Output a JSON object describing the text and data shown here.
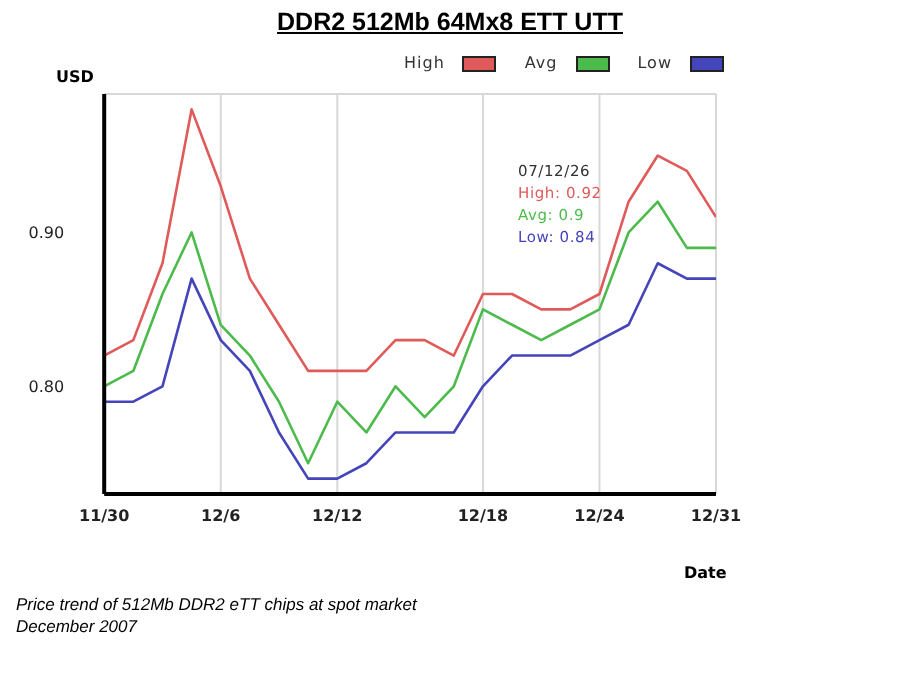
{
  "chart_data": {
    "type": "line",
    "title": "DDR2 512Mb 64Mx8 ETT UTT",
    "ylabel": "USD",
    "xlabel": "Date",
    "categories": [
      "11/30",
      null,
      null,
      null,
      "12/6",
      null,
      null,
      null,
      "12/12",
      null,
      null,
      null,
      null,
      "12/18",
      null,
      null,
      null,
      "12/24",
      null,
      null,
      null,
      "12/31"
    ],
    "series": [
      {
        "name": "High",
        "color": "#e05a5a",
        "values": [
          0.82,
          0.83,
          0.88,
          0.98,
          0.93,
          0.87,
          0.84,
          0.81,
          0.81,
          0.81,
          0.83,
          0.83,
          0.82,
          0.86,
          0.86,
          0.85,
          0.85,
          0.86,
          0.92,
          0.95,
          0.94,
          0.91
        ]
      },
      {
        "name": "Avg",
        "color": "#4cbb4c",
        "values": [
          0.8,
          0.81,
          0.86,
          0.9,
          0.84,
          0.82,
          0.79,
          0.75,
          0.79,
          0.77,
          0.8,
          0.78,
          0.8,
          0.85,
          0.84,
          0.83,
          0.84,
          0.85,
          0.9,
          0.92,
          0.89,
          0.89
        ]
      },
      {
        "name": "Low",
        "color": "#4444bb",
        "values": [
          0.79,
          0.79,
          0.8,
          0.87,
          0.83,
          0.81,
          0.77,
          0.74,
          0.74,
          0.75,
          0.77,
          0.77,
          0.77,
          0.8,
          0.82,
          0.82,
          0.82,
          0.83,
          0.84,
          0.88,
          0.87,
          0.87
        ]
      }
    ],
    "ylim": [
      0.73,
      0.99
    ],
    "yticks": [
      {
        "value": 0.8,
        "label": "0.80"
      },
      {
        "value": 0.9,
        "label": "0.90"
      }
    ],
    "grid": true,
    "legend": "top right",
    "marker": "none",
    "line_style": "solid",
    "annotations": [
      "07/12/26",
      "High: 0.92",
      "Avg: 0.9",
      "Low: 0.84",
      "Price trend of 512Mb DDR2 eTT chips at spot market",
      "December 2007"
    ]
  }
}
